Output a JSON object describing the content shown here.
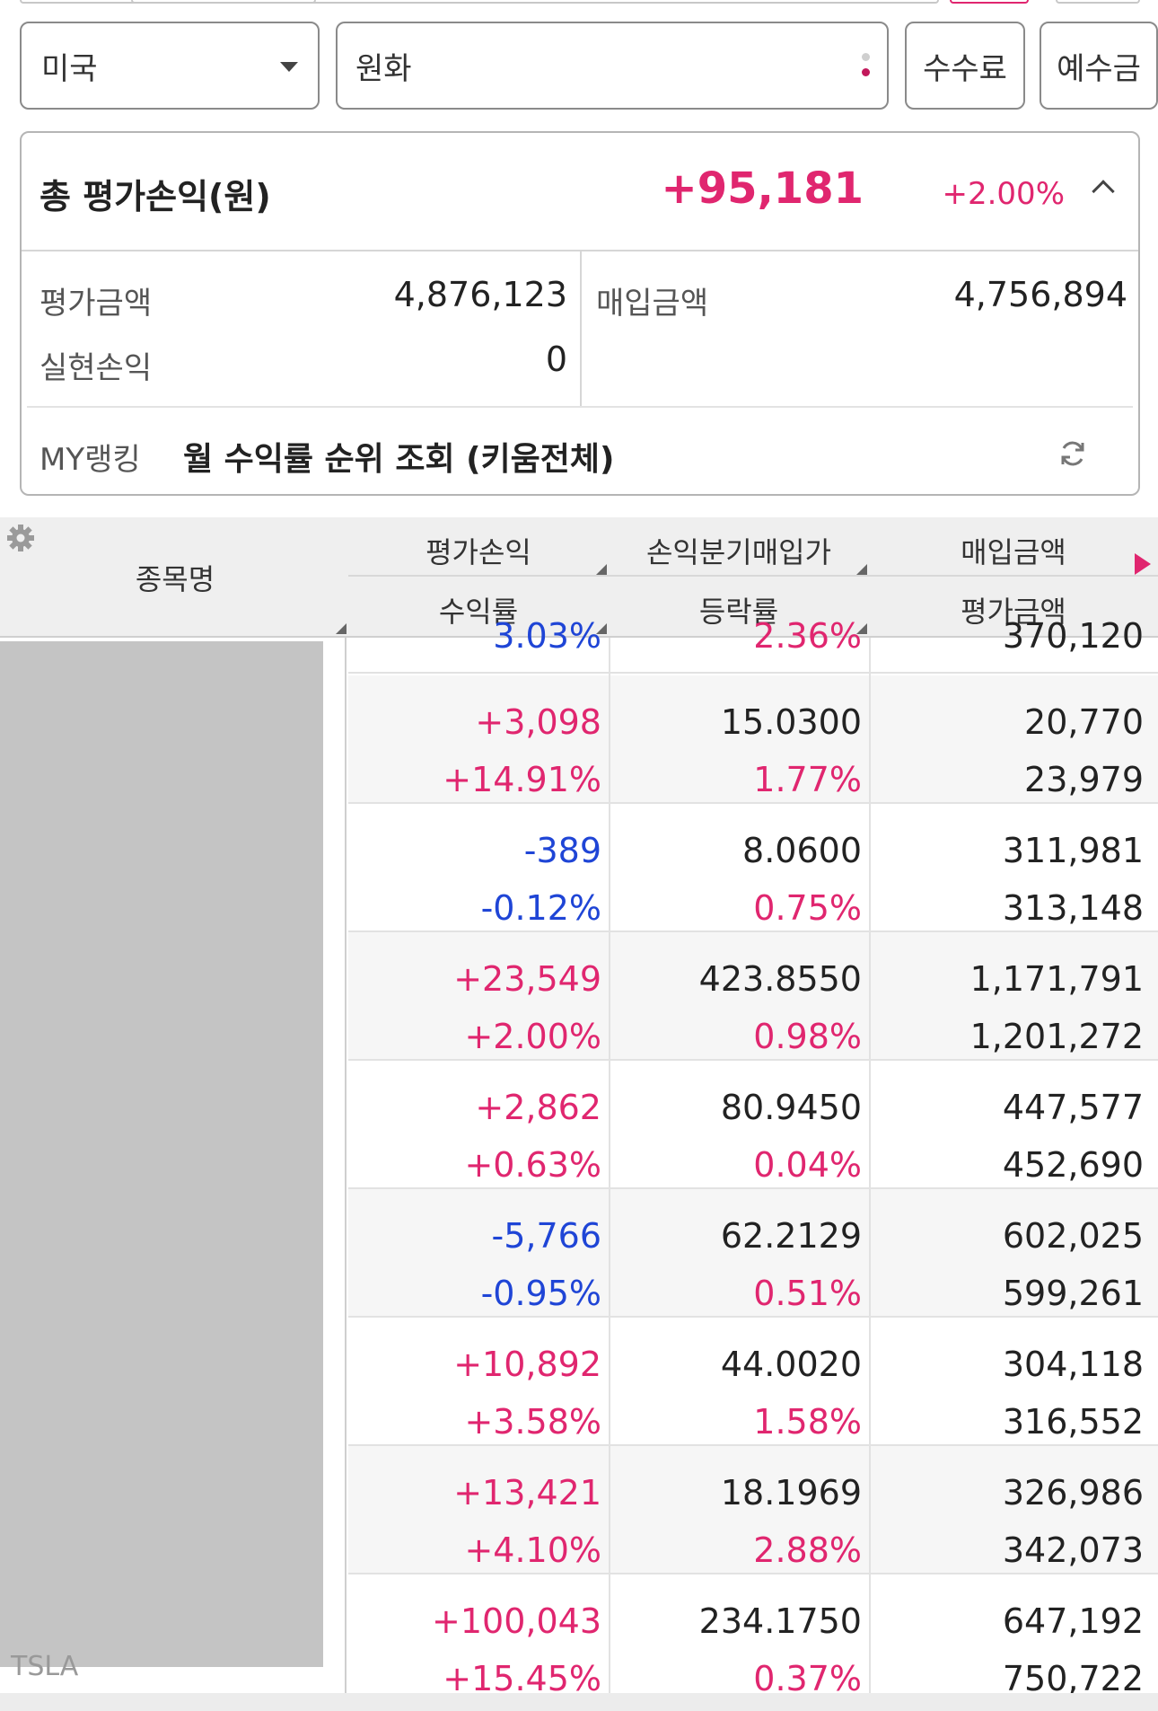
{
  "filters": {
    "country": "미국",
    "currency": "원화",
    "fee_button": "수수료",
    "deposit_button": "예수금"
  },
  "summary": {
    "title": "총 평가손익(원)",
    "value": "+95,181",
    "rate": "+2.00%",
    "eval_amount_label": "평가금액",
    "eval_amount": "4,876,123",
    "purchase_amount_label": "매입금액",
    "purchase_amount": "4,756,894",
    "realized_label": "실현손익",
    "realized": "0",
    "ranking_label": "MY랭킹",
    "ranking_text": "월 수익률 순위 조회 (키움전체)"
  },
  "table": {
    "headers": {
      "name": "종목명",
      "col1_top": "평가손익",
      "col1_bottom": "수익률",
      "col2_top": "손익분기매입가",
      "col2_bottom": "등락률",
      "col3_top": "매입금액",
      "col3_bottom": "평가금액"
    },
    "partial_top": {
      "col1": "3.03%",
      "col2": "2.36%",
      "col3": "370,120"
    },
    "last_name_fragment": "TSLA",
    "rows": [
      {
        "pnl": "+3,098",
        "rate": "+14.91%",
        "bep": "15.0300",
        "chg": "1.77%",
        "buy": "20,770",
        "eval": "23,979",
        "sign": "pos"
      },
      {
        "pnl": "-389",
        "rate": "-0.12%",
        "bep": "8.0600",
        "chg": "0.75%",
        "buy": "311,981",
        "eval": "313,148",
        "sign": "neg"
      },
      {
        "pnl": "+23,549",
        "rate": "+2.00%",
        "bep": "423.8550",
        "chg": "0.98%",
        "buy": "1,171,791",
        "eval": "1,201,272",
        "sign": "pos"
      },
      {
        "pnl": "+2,862",
        "rate": "+0.63%",
        "bep": "80.9450",
        "chg": "0.04%",
        "buy": "447,577",
        "eval": "452,690",
        "sign": "pos"
      },
      {
        "pnl": "-5,766",
        "rate": "-0.95%",
        "bep": "62.2129",
        "chg": "0.51%",
        "buy": "602,025",
        "eval": "599,261",
        "sign": "neg"
      },
      {
        "pnl": "+10,892",
        "rate": "+3.58%",
        "bep": "44.0020",
        "chg": "1.58%",
        "buy": "304,118",
        "eval": "316,552",
        "sign": "pos"
      },
      {
        "pnl": "+13,421",
        "rate": "+4.10%",
        "bep": "18.1969",
        "chg": "2.88%",
        "buy": "326,986",
        "eval": "342,073",
        "sign": "pos"
      },
      {
        "pnl": "+100,043",
        "rate": "+15.45%",
        "bep": "234.1750",
        "chg": "0.37%",
        "buy": "647,192",
        "eval": "750,722",
        "sign": "pos"
      }
    ]
  },
  "colors": {
    "positive": "#e0266f",
    "negative": "#1f45d6"
  },
  "icons": {
    "gear": "gear-icon",
    "refresh": "refresh-icon",
    "chevron": "chevron-up-icon",
    "dropdown": "caret-down-icon",
    "more": "vertical-dots-icon",
    "scroll_right": "arrow-right-icon"
  }
}
